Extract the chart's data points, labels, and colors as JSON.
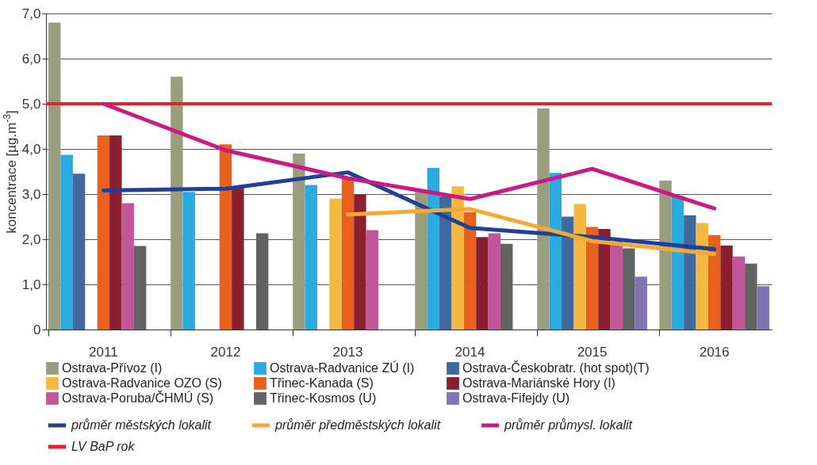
{
  "chart_data": {
    "type": "bar",
    "ylabel": "koncentrace [µg.m$^{-3}$]",
    "categories": [
      "2011",
      "2012",
      "2013",
      "2014",
      "2015",
      "2016"
    ],
    "ylim": [
      0,
      7
    ],
    "yticks": [
      {
        "value": 0,
        "label": "0"
      },
      {
        "value": 1,
        "label": "1,0"
      },
      {
        "value": 2,
        "label": "2,0"
      },
      {
        "value": 3,
        "label": "3,0"
      },
      {
        "value": 4,
        "label": "4,0"
      },
      {
        "value": 5,
        "label": "5,0"
      },
      {
        "value": 6,
        "label": "6,0"
      },
      {
        "value": 7,
        "label": "7,0"
      }
    ],
    "grid": "y",
    "legend": "bottom",
    "series": [
      {
        "name": "Ostrava-Přívoz (I)",
        "color": "#9a9e7c",
        "values": [
          6.8,
          5.6,
          3.9,
          3.05,
          4.9,
          3.3
        ]
      },
      {
        "name": "Ostrava-Radvanice ZÚ (I)",
        "color": "#29abe2",
        "values": [
          3.87,
          3.05,
          3.2,
          3.58,
          3.47,
          2.95
        ]
      },
      {
        "name": "Ostrava-Českobratr. (hot spot)(T)",
        "color": "#3f6aa0",
        "values": [
          3.45,
          null,
          null,
          2.95,
          2.5,
          2.53
        ]
      },
      {
        "name": "Ostrava-Radvanice OZO (S)",
        "color": "#f4b73f",
        "values": [
          null,
          null,
          2.9,
          3.17,
          2.78,
          2.36
        ]
      },
      {
        "name": "Třinec-Kanada (S)",
        "color": "#e8601c",
        "values": [
          4.3,
          4.1,
          3.35,
          2.6,
          2.27,
          2.09
        ]
      },
      {
        "name": "Ostrava-Mariánské Hory (I)",
        "color": "#8b1e2f",
        "values": [
          4.3,
          3.15,
          2.99,
          2.05,
          2.23,
          1.86
        ]
      },
      {
        "name": "Ostrava-Poruba/ČHMÚ (S)",
        "color": "#c1579a",
        "values": [
          2.8,
          null,
          2.2,
          2.13,
          1.95,
          1.62
        ]
      },
      {
        "name": "Třinec-Kosmos (U)",
        "color": "#636363",
        "values": [
          1.85,
          2.13,
          null,
          1.9,
          1.8,
          1.46
        ]
      },
      {
        "name": "Ostrava-Fifejdy (U)",
        "color": "#8273b6",
        "values": [
          null,
          null,
          null,
          null,
          1.17,
          0.96
        ]
      },
      {
        "name": "průměr městských lokalit",
        "type": "line",
        "color": "#1f3f99",
        "values": [
          3.08,
          3.12,
          3.48,
          2.25,
          2.05,
          1.78
        ]
      },
      {
        "name": "průměr předměstských lokalit",
        "type": "line",
        "color": "#f5a833",
        "values": [
          null,
          null,
          2.55,
          2.67,
          1.96,
          1.67
        ]
      },
      {
        "name": "průměr průmysl. lokalit",
        "type": "line",
        "color": "#cc1a85",
        "values": [
          5.0,
          3.97,
          3.35,
          2.89,
          3.56,
          2.68
        ]
      }
    ],
    "ref_lines": [
      {
        "axis": "y",
        "value": 5.0,
        "label": "LV BaP rok",
        "color": "#e8202a"
      }
    ]
  }
}
